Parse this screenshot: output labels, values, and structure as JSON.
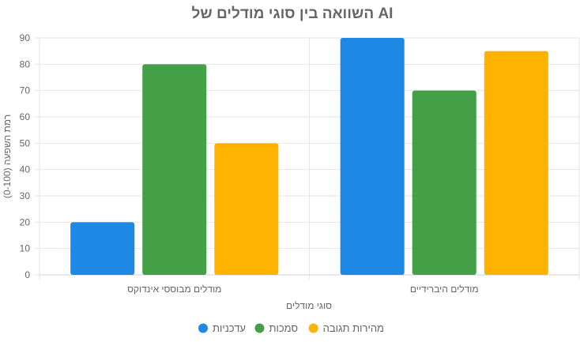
{
  "chart_data": {
    "type": "bar",
    "title": "השוואה בין סוגי מודלים של AI",
    "xlabel": "סוגי מודלים",
    "ylabel": "רמת השפעה (0-100)",
    "categories": [
      "מודלים מבוססי אינדוקס",
      "מודלים היברידיים"
    ],
    "ylim": [
      0,
      90
    ],
    "yticks": [
      0,
      10,
      20,
      30,
      40,
      50,
      60,
      70,
      80,
      90
    ],
    "grid": true,
    "legend_position": "bottom",
    "series": [
      {
        "name": "עדכניות",
        "color": "#1e88e5",
        "values": [
          20,
          90
        ]
      },
      {
        "name": "סמכות",
        "color": "#43a047",
        "values": [
          80,
          70
        ]
      },
      {
        "name": "מהירות תגובה",
        "color": "#ffb300",
        "values": [
          50,
          85
        ]
      }
    ]
  }
}
